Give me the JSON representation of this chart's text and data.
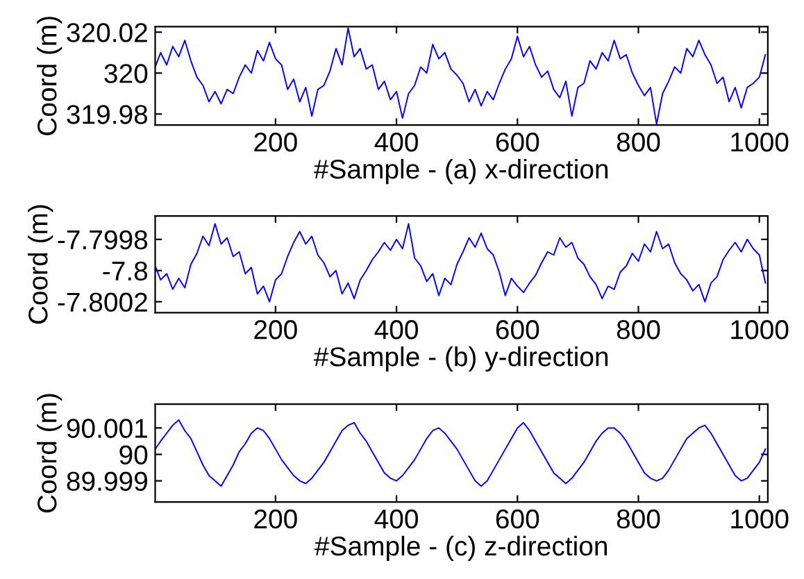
{
  "chart_data": [
    {
      "type": "line",
      "xlabel": "#Sample - (a) x-direction",
      "ylabel": "Coord (m)",
      "xlim": [
        1,
        1014
      ],
      "ylim": [
        319.9746,
        320.0227
      ],
      "xticks": [
        200,
        400,
        600,
        800,
        1000
      ],
      "yticks": [
        319.98,
        320,
        320.02
      ],
      "grid": false,
      "x": [
        1,
        10,
        20,
        30,
        40,
        50,
        60,
        70,
        80,
        90,
        100,
        110,
        120,
        130,
        140,
        150,
        160,
        170,
        180,
        190,
        200,
        210,
        220,
        230,
        240,
        250,
        260,
        270,
        280,
        290,
        300,
        310,
        320,
        330,
        340,
        350,
        360,
        370,
        380,
        390,
        400,
        410,
        420,
        430,
        440,
        450,
        460,
        470,
        480,
        490,
        500,
        510,
        520,
        530,
        540,
        550,
        560,
        570,
        580,
        590,
        600,
        610,
        620,
        630,
        640,
        650,
        660,
        670,
        680,
        690,
        700,
        710,
        720,
        730,
        740,
        750,
        760,
        770,
        780,
        790,
        800,
        810,
        820,
        830,
        840,
        850,
        860,
        870,
        880,
        890,
        900,
        910,
        920,
        930,
        940,
        950,
        960,
        970,
        980,
        990,
        1000,
        1010
      ],
      "series": [
        {
          "color": "#0000ff",
          "values": [
            320.003,
            320.01,
            320.004,
            320.013,
            320.008,
            320.016,
            320.006,
            319.998,
            319.994,
            319.986,
            319.991,
            319.985,
            319.992,
            319.99,
            319.998,
            320.004,
            320.0,
            320.011,
            320.006,
            320.015,
            320.007,
            320.004,
            319.992,
            319.997,
            319.986,
            319.993,
            319.979,
            319.992,
            319.994,
            320.001,
            320.012,
            320.004,
            320.022,
            320.008,
            320.012,
            320.002,
            320.004,
            319.992,
            319.996,
            319.987,
            319.991,
            319.978,
            319.99,
            319.994,
            320.003,
            320.0,
            320.014,
            320.007,
            320.01,
            320.002,
            319.999,
            319.995,
            319.986,
            319.992,
            319.984,
            319.991,
            319.987,
            319.995,
            320.002,
            320.007,
            320.018,
            320.008,
            320.013,
            320.004,
            319.998,
            320.001,
            319.992,
            319.988,
            319.996,
            319.979,
            319.993,
            319.995,
            320.006,
            320.002,
            320.01,
            320.006,
            320.016,
            320.007,
            320.009,
            320.0,
            319.994,
            319.989,
            319.993,
            319.975,
            319.99,
            319.996,
            320.003,
            320.0,
            320.012,
            320.008,
            320.016,
            320.009,
            320.004,
            319.995,
            319.998,
            319.986,
            319.993,
            319.983,
            319.993,
            319.995,
            319.998,
            320.009
          ]
        }
      ]
    },
    {
      "type": "line",
      "xlabel": "#Sample - (b) y-direction",
      "ylabel": "Coord (m)",
      "xlim": [
        1,
        1014
      ],
      "ylim": [
        -7.80027,
        -7.79965
      ],
      "xticks": [
        200,
        400,
        600,
        800,
        1000
      ],
      "yticks": [
        -7.8002,
        -7.8,
        -7.7998
      ],
      "grid": false,
      "x": [
        1,
        10,
        20,
        30,
        40,
        50,
        60,
        70,
        80,
        90,
        100,
        110,
        120,
        130,
        140,
        150,
        160,
        170,
        180,
        190,
        200,
        210,
        220,
        230,
        240,
        250,
        260,
        270,
        280,
        290,
        300,
        310,
        320,
        330,
        340,
        350,
        360,
        370,
        380,
        390,
        400,
        410,
        420,
        430,
        440,
        450,
        460,
        470,
        480,
        490,
        500,
        510,
        520,
        530,
        540,
        550,
        560,
        570,
        580,
        590,
        600,
        610,
        620,
        630,
        640,
        650,
        660,
        670,
        680,
        690,
        700,
        710,
        720,
        730,
        740,
        750,
        760,
        770,
        780,
        790,
        800,
        810,
        820,
        830,
        840,
        850,
        860,
        870,
        880,
        890,
        900,
        910,
        920,
        930,
        940,
        950,
        960,
        970,
        980,
        990,
        1000,
        1010
      ],
      "series": [
        {
          "color": "#0000ff",
          "values": [
            -7.79997,
            -7.80006,
            -7.80002,
            -7.80012,
            -7.80005,
            -7.80011,
            -7.79996,
            -7.79989,
            -7.79978,
            -7.79984,
            -7.7997,
            -7.79983,
            -7.79979,
            -7.79991,
            -7.79988,
            -7.80002,
            -7.79998,
            -7.80015,
            -7.8001,
            -7.8002,
            -7.80006,
            -7.80002,
            -7.79991,
            -7.79982,
            -7.79975,
            -7.79983,
            -7.79978,
            -7.7999,
            -7.79995,
            -7.80004,
            -7.8,
            -7.80015,
            -7.80008,
            -7.80018,
            -7.80006,
            -7.8,
            -7.79993,
            -7.79988,
            -7.79982,
            -7.79987,
            -7.7998,
            -7.79986,
            -7.7997,
            -7.79992,
            -7.79997,
            -7.80007,
            -7.80002,
            -7.80016,
            -7.80005,
            -7.80009,
            -7.79996,
            -7.79988,
            -7.79979,
            -7.79985,
            -7.79976,
            -7.79986,
            -7.7999,
            -7.80001,
            -7.80016,
            -7.80005,
            -7.8001,
            -7.80014,
            -7.80008,
            -7.80003,
            -7.79995,
            -7.79988,
            -7.7999,
            -7.79979,
            -7.79985,
            -7.79982,
            -7.79992,
            -7.79996,
            -7.80004,
            -7.80009,
            -7.80018,
            -7.8001,
            -7.80012,
            -7.80001,
            -7.79997,
            -7.79989,
            -7.79994,
            -7.79983,
            -7.79988,
            -7.79975,
            -7.79986,
            -7.79983,
            -7.79995,
            -7.80002,
            -7.80006,
            -7.80013,
            -7.80009,
            -7.8002,
            -7.80008,
            -7.80004,
            -7.79993,
            -7.79987,
            -7.79982,
            -7.79988,
            -7.7998,
            -7.79986,
            -7.7999,
            -7.80008
          ]
        }
      ]
    },
    {
      "type": "line",
      "xlabel": "#Sample - (c) z-direction",
      "ylabel": "Coord (m)",
      "xlim": [
        1,
        1014
      ],
      "ylim": [
        89.9982,
        90.0019
      ],
      "xticks": [
        200,
        400,
        600,
        800,
        1000
      ],
      "yticks": [
        89.999,
        90,
        90.001
      ],
      "grid": false,
      "x": [
        1,
        10,
        20,
        30,
        40,
        50,
        60,
        70,
        80,
        90,
        100,
        110,
        120,
        130,
        140,
        150,
        160,
        170,
        180,
        190,
        200,
        210,
        220,
        230,
        240,
        250,
        260,
        270,
        280,
        290,
        300,
        310,
        320,
        330,
        340,
        350,
        360,
        370,
        380,
        390,
        400,
        410,
        420,
        430,
        440,
        450,
        460,
        470,
        480,
        490,
        500,
        510,
        520,
        530,
        540,
        550,
        560,
        570,
        580,
        590,
        600,
        610,
        620,
        630,
        640,
        650,
        660,
        670,
        680,
        690,
        700,
        710,
        720,
        730,
        740,
        750,
        760,
        770,
        780,
        790,
        800,
        810,
        820,
        830,
        840,
        850,
        860,
        870,
        880,
        890,
        900,
        910,
        920,
        930,
        940,
        950,
        960,
        970,
        980,
        990,
        1000,
        1010
      ],
      "series": [
        {
          "color": "#0000ff",
          "values": [
            90.0002,
            90.0005,
            90.0008,
            90.0011,
            90.0013,
            90.0009,
            90.0006,
            90.0001,
            89.9996,
            89.9992,
            89.999,
            89.9988,
            89.9992,
            89.9996,
            90.0001,
            90.0004,
            90.0008,
            90.001,
            90.0009,
            90.0006,
            90.0002,
            89.9998,
            89.9995,
            89.9992,
            89.999,
            89.9989,
            89.9991,
            89.9994,
            89.9997,
            90.0001,
            90.0005,
            90.0009,
            90.0011,
            90.0012,
            90.0008,
            90.0005,
            90.0001,
            89.9997,
            89.9993,
            89.9991,
            89.999,
            89.9992,
            89.9995,
            89.9998,
            90.0002,
            90.0006,
            90.0009,
            90.001,
            90.0008,
            90.0005,
            90.0002,
            89.9998,
            89.9994,
            89.999,
            89.9988,
            89.999,
            89.9994,
            89.9998,
            90.0002,
            90.0006,
            90.001,
            90.0012,
            90.0009,
            90.0005,
            90.0001,
            89.9997,
            89.9993,
            89.9991,
            89.9989,
            89.9991,
            89.9994,
            89.9997,
            90.0001,
            90.0005,
            90.0008,
            90.001,
            90.001,
            90.0008,
            90.0005,
            90.0001,
            89.9997,
            89.9993,
            89.9991,
            89.999,
            89.9991,
            89.9994,
            89.9998,
            90.0002,
            90.0006,
            90.0008,
            90.001,
            90.0011,
            90.0008,
            90.0004,
            90.0,
            89.9996,
            89.9992,
            89.999,
            89.9991,
            89.9994,
            89.9997,
            90.0002
          ]
        }
      ]
    }
  ]
}
